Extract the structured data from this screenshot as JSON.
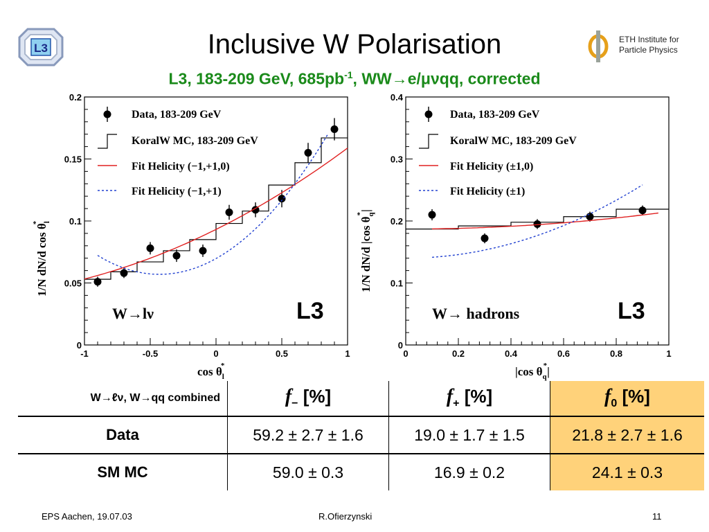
{
  "slide": {
    "title": "Inclusive W Polarisation",
    "subtitle_main": "L3, 183-209 GeV, 685pb",
    "subtitle_sup": "-1",
    "subtitle_rest": ", WW→e/μνqq, corrected",
    "eth_line1": "ETH Institute for",
    "eth_line2": "Particle Physics",
    "l3_logo_text": "L3"
  },
  "chart_data": [
    {
      "type": "scatter",
      "xlabel_main": "cos θ",
      "xlabel_sub": "l",
      "xlabel_sup": "*",
      "ylabel": "1/N dN/d cos θ",
      "ylabel_sub": "l",
      "ylabel_sup": "*",
      "xlim": [
        -1,
        1
      ],
      "ylim": [
        0,
        0.2
      ],
      "xticks": [
        "-1",
        "-0.5",
        "0",
        "0.5",
        "1"
      ],
      "yticks": [
        "0",
        "0.05",
        "0.1",
        "0.15",
        "0.2"
      ],
      "process_label": "W→lν",
      "experiment_label": "L3",
      "legend": {
        "position": "top-left",
        "data": "Data, 183-209 GeV",
        "mc": "KoralW MC, 183-209 GeV",
        "fit_red": "Fit Helicity (−1,+1,0)",
        "fit_blue": "Fit Helicity (−1,+1)"
      },
      "series": [
        {
          "name": "Data, 183-209 GeV",
          "kind": "points",
          "x": [
            -0.9,
            -0.7,
            -0.5,
            -0.3,
            -0.1,
            0.1,
            0.3,
            0.5,
            0.7,
            0.9
          ],
          "y": [
            0.051,
            0.058,
            0.078,
            0.072,
            0.076,
            0.107,
            0.109,
            0.118,
            0.155,
            0.174
          ],
          "err": [
            0.004,
            0.004,
            0.005,
            0.005,
            0.005,
            0.006,
            0.006,
            0.007,
            0.008,
            0.009
          ]
        },
        {
          "name": "KoralW MC, 183-209 GeV",
          "kind": "hist",
          "edges": [
            -1,
            -0.8,
            -0.6,
            -0.4,
            -0.2,
            0,
            0.2,
            0.4,
            0.6,
            0.8,
            1
          ],
          "values": [
            0.053,
            0.059,
            0.067,
            0.076,
            0.085,
            0.098,
            0.108,
            0.129,
            0.147,
            0.167
          ]
        },
        {
          "name": "Fit Helicity (−1,+1,0)",
          "kind": "curve",
          "color": "#e02020",
          "coef": [
            0.0932,
            0.0528,
            0.0128
          ]
        },
        {
          "name": "Fit Helicity (−1,+1)",
          "kind": "curve",
          "color": "#2040d0",
          "dashed": true,
          "coef": [
            0.0697,
            0.0593,
            0.069
          ],
          "xrange": [
            -0.9,
            0.85
          ]
        }
      ]
    },
    {
      "type": "scatter",
      "xlabel_main": "|cos θ",
      "xlabel_sub": "q",
      "xlabel_sup": "*",
      "xlabel_end": "|",
      "ylabel": "1/N dN/d |cos θ",
      "ylabel_sub": "q",
      "ylabel_sup": "*",
      "ylabel_end": "|",
      "xlim": [
        0,
        1
      ],
      "ylim": [
        0,
        0.4
      ],
      "xticks": [
        "0",
        "0.2",
        "0.4",
        "0.6",
        "0.8",
        "1"
      ],
      "yticks": [
        "0",
        "0.1",
        "0.2",
        "0.3",
        "0.4"
      ],
      "process_label": "W→ hadrons",
      "experiment_label": "L3",
      "legend": {
        "position": "top-left",
        "data": "Data, 183-209 GeV",
        "mc": "KoralW MC, 183-209 GeV",
        "fit_red": "Fit Helicity (±1,0)",
        "fit_blue": "Fit Helicity (±1)"
      },
      "series": [
        {
          "name": "Data, 183-209 GeV",
          "kind": "points",
          "x": [
            0.1,
            0.3,
            0.5,
            0.7,
            0.9
          ],
          "y": [
            0.21,
            0.172,
            0.195,
            0.207,
            0.217
          ],
          "err": [
            0.009,
            0.008,
            0.008,
            0.008,
            0.008
          ]
        },
        {
          "name": "KoralW MC, 183-209 GeV",
          "kind": "hist",
          "edges": [
            0,
            0.2,
            0.4,
            0.6,
            0.8,
            1
          ],
          "values": [
            0.187,
            0.192,
            0.198,
            0.207,
            0.219
          ]
        },
        {
          "name": "Fit Helicity (±1,0)",
          "kind": "curve",
          "color": "#e02020",
          "coef": [
            0.187,
            0.0,
            0.028
          ],
          "xrange": [
            0.1,
            0.96
          ]
        },
        {
          "name": "Fit Helicity (±1)",
          "kind": "curve",
          "color": "#2040d0",
          "dashed": true,
          "coef": [
            0.14,
            0.0,
            0.146
          ],
          "xrange": [
            0.1,
            0.9
          ]
        }
      ]
    }
  ],
  "table": {
    "corner_label": "W→ℓν, W→qq  combined",
    "headers": [
      {
        "sym": "f",
        "sub": "−",
        "unit": " [%]"
      },
      {
        "sym": "f",
        "sub": "+",
        "unit": " [%]"
      },
      {
        "sym": "f",
        "sub": "0",
        "unit": " [%]"
      }
    ],
    "rows": [
      {
        "label": "Data",
        "cells": [
          "59.2 ± 2.7 ± 1.6",
          "19.0 ± 1.7 ± 1.5",
          "21.8 ± 2.7 ± 1.6"
        ]
      },
      {
        "label": "SM MC",
        "cells": [
          "59.0 ± 0.3",
          "16.9 ± 0.2",
          "24.1 ± 0.3"
        ]
      }
    ]
  },
  "footer": {
    "left": "EPS Aachen, 19.07.03",
    "center": "R.Ofierzynski",
    "page": "11"
  },
  "colors": {
    "subtitle": "#1a8a1a",
    "highlight": "#ffd27a",
    "fit_red": "#e02020",
    "fit_blue": "#2040d0"
  }
}
